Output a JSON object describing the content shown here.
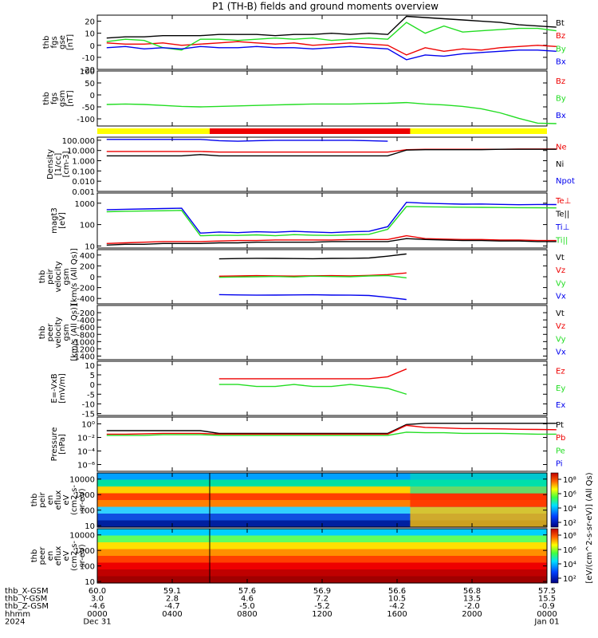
{
  "title": "P1 (TH-B) fields and ground moments overview",
  "colors": {
    "black": "#000000",
    "red": "#ee0000",
    "green": "#22dd22",
    "blue": "#0000ee",
    "yellow": "#ffff00"
  },
  "chart_data": [
    {
      "type": "line",
      "panel": "fgs_gse",
      "ylabel_lines": [
        "thb",
        "fgs",
        "gse",
        "[nT]"
      ],
      "ylim": [
        -20,
        25
      ],
      "yticks": [
        "20",
        "10",
        "0",
        "-10",
        "-20"
      ],
      "series": [
        {
          "name": "Bt",
          "color": "black",
          "values_by_hour": [
            6,
            7,
            7,
            8,
            8,
            8,
            9,
            9,
            9,
            8,
            9,
            9,
            10,
            9,
            10,
            9,
            24,
            23,
            22,
            21,
            20,
            19,
            17,
            16,
            15
          ]
        },
        {
          "name": "Bz",
          "color": "red",
          "values_by_hour": [
            2,
            1,
            1,
            2,
            0,
            1,
            2,
            3,
            2,
            1,
            2,
            0,
            1,
            2,
            1,
            0,
            -8,
            -2,
            -5,
            -3,
            -4,
            -2,
            -1,
            0,
            -1
          ]
        },
        {
          "name": "By",
          "color": "green",
          "values_by_hour": [
            3,
            5,
            4,
            -2,
            -4,
            5,
            5,
            4,
            5,
            6,
            5,
            6,
            4,
            5,
            6,
            5,
            19,
            10,
            16,
            11,
            12,
            13,
            14,
            14,
            12
          ]
        },
        {
          "name": "Bx",
          "color": "blue",
          "values_by_hour": [
            -2,
            -1,
            -3,
            -2,
            -3,
            -1,
            -2,
            -2,
            -1,
            -2,
            -2,
            -3,
            -2,
            -1,
            -2,
            -3,
            -12,
            -8,
            -9,
            -7,
            -6,
            -5,
            -4,
            -4,
            -5
          ]
        }
      ]
    },
    {
      "type": "line",
      "panel": "fgs_gsm",
      "ylabel_lines": [
        "thb",
        "fgs",
        "gsm",
        "[nT]"
      ],
      "ylim": [
        -130,
        100
      ],
      "yticks": [
        "100",
        "50",
        "0",
        "-50",
        "-100"
      ],
      "series": [
        {
          "name": "Bz",
          "color": "red",
          "values_by_hour": []
        },
        {
          "name": "By",
          "color": "green",
          "values_by_hour": [
            -40,
            -38,
            -40,
            -44,
            -48,
            -50,
            -48,
            -46,
            -44,
            -42,
            -40,
            -38,
            -38,
            -38,
            -36,
            -35,
            -32,
            -38,
            -42,
            -48,
            -58,
            -75,
            -98,
            -118,
            -120
          ]
        },
        {
          "name": "Bx",
          "color": "blue",
          "values_by_hour": []
        }
      ]
    },
    {
      "type": "line",
      "panel": "density",
      "ylabel_lines": [
        "Density",
        "[1/cc]",
        "[cm-3]"
      ],
      "ylog": true,
      "ylim": [
        0.001,
        200
      ],
      "yticks": [
        "100.000",
        "10.000",
        "1.000",
        "0.100",
        "0.010",
        "0.001"
      ],
      "series": [
        {
          "name": "Ne",
          "color": "red",
          "values_by_hour": [
            8,
            8,
            8,
            8,
            8,
            8,
            7,
            7,
            7,
            7,
            7,
            7,
            7,
            7,
            7,
            7,
            12,
            13,
            13,
            13,
            13,
            13,
            14,
            14,
            14
          ]
        },
        {
          "name": "Ni",
          "color": "black",
          "values_by_hour": [
            3,
            3,
            3,
            3,
            3,
            4,
            3,
            3,
            3,
            3,
            3,
            3,
            3,
            3,
            3,
            3,
            11,
            12,
            12,
            12,
            12,
            13,
            13,
            13,
            13
          ]
        },
        {
          "name": "Npot",
          "color": "blue",
          "values_by_hour": [
            120,
            120,
            120,
            120,
            120,
            120,
            90,
            80,
            90,
            100,
            100,
            100,
            100,
            100,
            90,
            80,
            null,
            null,
            null,
            null,
            null,
            null,
            null,
            null,
            null
          ]
        }
      ]
    },
    {
      "type": "line",
      "panel": "temperature",
      "ylabel_lines": [
        "magt3",
        "[eV]"
      ],
      "ylog": true,
      "ylim": [
        8,
        3000
      ],
      "yticks": [
        "1000",
        "100",
        "10"
      ],
      "series": [
        {
          "name": "Te⊥",
          "color": "red",
          "values_by_hour": [
            13,
            14,
            15,
            16,
            16,
            16,
            17,
            18,
            18,
            19,
            19,
            19,
            19,
            20,
            20,
            20,
            30,
            22,
            21,
            20,
            20,
            19,
            19,
            18,
            18
          ]
        },
        {
          "name": "Te||",
          "color": "black",
          "values_by_hour": [
            11,
            12,
            12,
            13,
            13,
            13,
            14,
            14,
            15,
            15,
            15,
            15,
            16,
            16,
            16,
            16,
            22,
            20,
            19,
            18,
            18,
            17,
            17,
            16,
            16
          ]
        },
        {
          "name": "Ti⊥",
          "color": "blue",
          "values_by_hour": [
            500,
            520,
            540,
            560,
            580,
            40,
            45,
            42,
            46,
            44,
            48,
            45,
            42,
            46,
            48,
            80,
            1100,
            1000,
            950,
            900,
            920,
            880,
            850,
            870,
            860
          ]
        },
        {
          "name": "Ti||",
          "color": "green",
          "values_by_hour": [
            400,
            420,
            430,
            440,
            460,
            30,
            32,
            31,
            33,
            30,
            34,
            32,
            31,
            33,
            35,
            60,
            700,
            680,
            660,
            650,
            640,
            630,
            620,
            610,
            600
          ]
        }
      ]
    },
    {
      "type": "line",
      "panel": "peir_velocity",
      "ylabel_lines": [
        "thb",
        "peir",
        "velocity",
        "gsm",
        "[km/s (All Qs)]"
      ],
      "ylim": [
        -500,
        500
      ],
      "yticks": [
        "400",
        "200",
        "0",
        "-200",
        "-400"
      ],
      "series": [
        {
          "name": "Vt",
          "color": "black",
          "values_by_hour": [
            null,
            null,
            null,
            null,
            null,
            null,
            330,
            335,
            340,
            338,
            335,
            332,
            338,
            340,
            345,
            380,
            420,
            null,
            null,
            null,
            null,
            null,
            null,
            null,
            null
          ]
        },
        {
          "name": "Vz",
          "color": "red",
          "values_by_hour": [
            null,
            null,
            null,
            null,
            null,
            null,
            10,
            15,
            20,
            15,
            12,
            18,
            20,
            15,
            25,
            40,
            70,
            null,
            null,
            null,
            null,
            null,
            null,
            null,
            null
          ]
        },
        {
          "name": "Vy",
          "color": "green",
          "values_by_hour": [
            null,
            null,
            null,
            null,
            null,
            null,
            -10,
            -5,
            0,
            5,
            -5,
            10,
            5,
            0,
            15,
            20,
            -20,
            null,
            null,
            null,
            null,
            null,
            null,
            null,
            null
          ]
        },
        {
          "name": "Vx",
          "color": "blue",
          "values_by_hour": [
            null,
            null,
            null,
            null,
            null,
            null,
            -330,
            -335,
            -340,
            -338,
            -335,
            -332,
            -338,
            -340,
            -345,
            -380,
            -420,
            null,
            null,
            null,
            null,
            null,
            null,
            null,
            null
          ]
        }
      ]
    },
    {
      "type": "line",
      "panel": "peer_velocity",
      "ylabel_lines": [
        "thb",
        "peer",
        "velocity",
        "gsm",
        "[km/s (All Qs)]"
      ],
      "ylim": [
        -1500,
        0
      ],
      "yticks": [
        "-200",
        "-400",
        "-600",
        "-800",
        "-1000",
        "-1200",
        "-1400"
      ],
      "series": [
        {
          "name": "Vt",
          "color": "black",
          "values_by_hour": []
        },
        {
          "name": "Vz",
          "color": "red",
          "values_by_hour": []
        },
        {
          "name": "Vy",
          "color": "green",
          "values_by_hour": []
        },
        {
          "name": "Vx",
          "color": "blue",
          "values_by_hour": []
        }
      ]
    },
    {
      "type": "line",
      "panel": "efield",
      "ylabel_lines": [
        "E=-VxB",
        "[mV/m]"
      ],
      "ylim": [
        -16,
        12
      ],
      "yticks": [
        "10",
        "5",
        "0",
        "-5",
        "-10",
        "-15"
      ],
      "series": [
        {
          "name": "Ez",
          "color": "red",
          "values_by_hour": [
            null,
            null,
            null,
            null,
            null,
            null,
            3,
            3,
            3,
            3,
            3,
            3,
            3,
            3,
            3,
            4,
            8,
            null,
            null,
            null,
            null,
            null,
            null,
            null,
            null
          ]
        },
        {
          "name": "Ey",
          "color": "green",
          "values_by_hour": [
            null,
            null,
            null,
            null,
            null,
            null,
            0,
            0,
            -1,
            -1,
            0,
            -1,
            -1,
            0,
            -1,
            -2,
            -5,
            null,
            null,
            null,
            null,
            null,
            null,
            null,
            null
          ]
        },
        {
          "name": "Ex",
          "color": "blue",
          "values_by_hour": []
        }
      ]
    },
    {
      "type": "line",
      "panel": "pressure",
      "ylabel_lines": [
        "Pressure",
        "[nPa]"
      ],
      "ylog": true,
      "ylim": [
        1e-07,
        10
      ],
      "yticks": [
        "10⁰",
        "10⁻²",
        "10⁻⁴",
        "10⁻⁶"
      ],
      "series": [
        {
          "name": "Pt",
          "color": "black",
          "values_by_hour": [
            0.1,
            0.1,
            0.1,
            0.1,
            0.1,
            0.1,
            0.04,
            0.04,
            0.04,
            0.04,
            0.04,
            0.04,
            0.04,
            0.04,
            0.04,
            0.04,
            0.8,
            1.2,
            1.2,
            1.2,
            1.2,
            1.2,
            1.2,
            1.2,
            1.2
          ]
        },
        {
          "name": "Pb",
          "color": "red",
          "values_by_hour": [
            0.03,
            0.03,
            0.035,
            0.04,
            0.04,
            0.04,
            0.03,
            0.03,
            0.03,
            0.03,
            0.03,
            0.03,
            0.03,
            0.03,
            0.03,
            0.03,
            0.6,
            0.3,
            0.25,
            0.2,
            0.2,
            0.18,
            0.16,
            0.15,
            0.14
          ]
        },
        {
          "name": "Pe",
          "color": "green",
          "values_by_hour": [
            0.02,
            0.02,
            0.02,
            0.025,
            0.025,
            0.025,
            0.02,
            0.02,
            0.02,
            0.02,
            0.02,
            0.02,
            0.02,
            0.02,
            0.02,
            0.02,
            0.06,
            0.05,
            0.05,
            0.04,
            0.04,
            0.04,
            0.035,
            0.03,
            0.03
          ]
        },
        {
          "name": "Pi",
          "color": "blue",
          "values_by_hour": []
        }
      ]
    },
    {
      "type": "heatmap",
      "panel": "peir_spectrogram",
      "ylabel_lines": [
        "thb",
        "peir",
        "en",
        "eflux",
        "eV",
        "(cm2-s-",
        "sr-eV)"
      ],
      "ylog": true,
      "ylim": [
        8,
        25000
      ],
      "yticks": [
        "10000",
        "1000",
        "100",
        "10"
      ]
    },
    {
      "type": "heatmap",
      "panel": "peer_spectrogram",
      "ylabel_lines": [
        "thb",
        "peer",
        "en",
        "eflux",
        "eV",
        "(cm2-s-",
        "sr-eV)"
      ],
      "ylog": true,
      "ylim": [
        8,
        25000
      ],
      "yticks": [
        "10000",
        "1000",
        "100",
        "10"
      ]
    }
  ],
  "colorbar": {
    "label": "[eV/(cm^2-s-sr-eV)] (All Qs)",
    "upper_ticks": [
      "10⁸",
      "10⁶",
      "10⁴",
      "10²"
    ],
    "lower_ticks": [
      "10⁸",
      "10⁶",
      "10⁴",
      "10²"
    ]
  },
  "quality_bar": [
    {
      "from_hour": 0,
      "to_hour": 6,
      "color": "yellow"
    },
    {
      "from_hour": 6,
      "to_hour": 16.7,
      "color": "red"
    },
    {
      "from_hour": 16.7,
      "to_hour": 24,
      "color": "yellow"
    }
  ],
  "time_axis": {
    "rows": [
      {
        "label": "thb_X-GSM",
        "values": [
          "60.0",
          "59.1",
          "57.6",
          "56.9",
          "56.6",
          "56.8",
          "57.5"
        ]
      },
      {
        "label": "thb_Y-GSM",
        "values": [
          "3.0",
          "2.8",
          "4.6",
          "7.2",
          "10.5",
          "13.5",
          "15.5"
        ]
      },
      {
        "label": "thb_Z-GSM",
        "values": [
          "-4.6",
          "-4.7",
          "-5.0",
          "-5.2",
          "-4.2",
          "-2.0",
          "-0.9"
        ]
      },
      {
        "label": "hhmm",
        "values": [
          "0000",
          "0400",
          "0800",
          "1200",
          "1600",
          "2000",
          "0000"
        ]
      },
      {
        "label": "2024",
        "values": [
          "Dec 31",
          "",
          "",
          "",
          "",
          "",
          "Jan 01"
        ]
      }
    ]
  }
}
